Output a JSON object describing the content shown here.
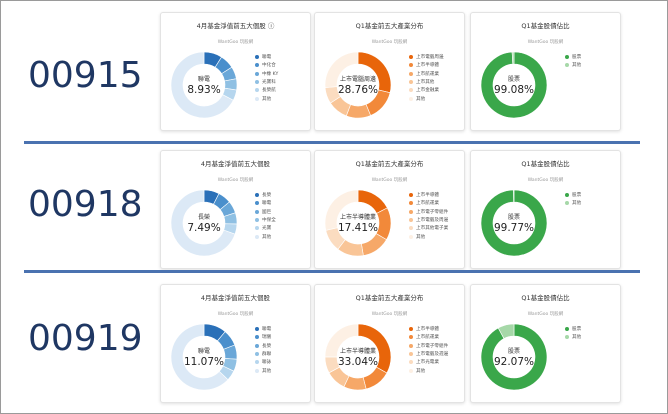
{
  "funds": [
    {
      "code": "00915",
      "cards": [
        {
          "title": "4月基金淨值前五大個股 ⓘ",
          "source": "WantGoo 玩股網",
          "center_label": "聯電",
          "center_value": "8.93%",
          "legend": [
            "聯電",
            "中化合",
            "中橡 KY",
            "光寶科",
            "長榮航",
            "其他"
          ],
          "values": [
            8.93,
            7.0,
            6.0,
            5.5,
            5.2,
            67.37
          ],
          "colors": [
            "#2a70b8",
            "#4a8fcc",
            "#6aa7d8",
            "#8fc0e3",
            "#b6d6ee",
            "#dce9f6"
          ]
        },
        {
          "title": "Q1基金前五大產業分布",
          "source": "WantGoo 玩股網",
          "center_label": "上市電腦周邊",
          "center_value": "28.76%",
          "legend": [
            "上市電腦周邊",
            "上市半導體",
            "上市航運業",
            "上市其他",
            "上市金融業",
            "其他"
          ],
          "values": [
            28.76,
            15.0,
            12.0,
            10.0,
            8.0,
            26.24
          ],
          "colors": [
            "#e8650a",
            "#f2893a",
            "#f6a868",
            "#f9c597",
            "#fbdcc0",
            "#fdf0e4"
          ]
        },
        {
          "title": "Q1基金股債佔比",
          "source": "WantGoo 玩股網",
          "center_label": "股票",
          "center_value": "99.08%",
          "legend": [
            "股票",
            "其他"
          ],
          "values": [
            99.08,
            0.92
          ],
          "colors": [
            "#3aa74a",
            "#a6d8a8"
          ]
        }
      ]
    },
    {
      "code": "00918",
      "cards": [
        {
          "title": "4月基金淨值前五大個股",
          "source": "WantGoo 玩股網",
          "center_label": "長榮",
          "center_value": "7.49%",
          "legend": [
            "長榮",
            "聯電",
            "國巨",
            "中保全",
            "光寶",
            "其他"
          ],
          "values": [
            7.49,
            6.5,
            6.0,
            5.5,
            5.0,
            69.51
          ],
          "colors": [
            "#2a70b8",
            "#4a8fcc",
            "#6aa7d8",
            "#8fc0e3",
            "#b6d6ee",
            "#dce9f6"
          ]
        },
        {
          "title": "Q1基金前五大產業分布",
          "source": "WantGoo 玩股網",
          "center_label": "上市半導體業",
          "center_value": "17.41%",
          "legend": [
            "上市半導體",
            "上市航運業",
            "上市電子零組件",
            "上市電腦及周邊",
            "上市其他電子業",
            "其他"
          ],
          "values": [
            17.41,
            16.0,
            14.0,
            13.0,
            11.0,
            28.59
          ],
          "colors": [
            "#e8650a",
            "#f2893a",
            "#f6a868",
            "#f9c597",
            "#fbdcc0",
            "#fdf0e4"
          ]
        },
        {
          "title": "Q1基金股債佔比",
          "source": "WantGoo 玩股網",
          "center_label": "股票",
          "center_value": "99.77%",
          "legend": [
            "股票",
            "其他"
          ],
          "values": [
            99.77,
            0.23
          ],
          "colors": [
            "#3aa74a",
            "#a6d8a8"
          ]
        }
      ]
    },
    {
      "code": "00919",
      "cards": [
        {
          "title": "4月基金淨值前五大個股",
          "source": "WantGoo 玩股網",
          "center_label": "聯電",
          "center_value": "11.07%",
          "legend": [
            "聯電",
            "瑞儀",
            "長榮",
            "群聯",
            "聯詠",
            "其他"
          ],
          "values": [
            11.07,
            8.0,
            7.0,
            6.0,
            5.0,
            62.93
          ],
          "colors": [
            "#2a70b8",
            "#4a8fcc",
            "#6aa7d8",
            "#8fc0e3",
            "#b6d6ee",
            "#dce9f6"
          ]
        },
        {
          "title": "Q1基金前五大產業分布",
          "source": "WantGoo 玩股網",
          "center_label": "上市半導體業",
          "center_value": "33.04%",
          "legend": [
            "上市半導體",
            "上市航運業",
            "上市電子零組件",
            "上市電腦及週邊",
            "上市光電業",
            "其他"
          ],
          "values": [
            33.04,
            13.0,
            11.0,
            10.0,
            8.0,
            24.96
          ],
          "colors": [
            "#e8650a",
            "#f2893a",
            "#f6a868",
            "#f9c597",
            "#fbdcc0",
            "#fdf0e4"
          ]
        },
        {
          "title": "Q1基金股債佔比",
          "source": "WantGoo 玩股網",
          "center_label": "股票",
          "center_value": "92.07%",
          "legend": [
            "股票",
            "其他"
          ],
          "values": [
            92.07,
            7.93
          ],
          "colors": [
            "#3aa74a",
            "#a6d8a8"
          ]
        }
      ]
    }
  ]
}
